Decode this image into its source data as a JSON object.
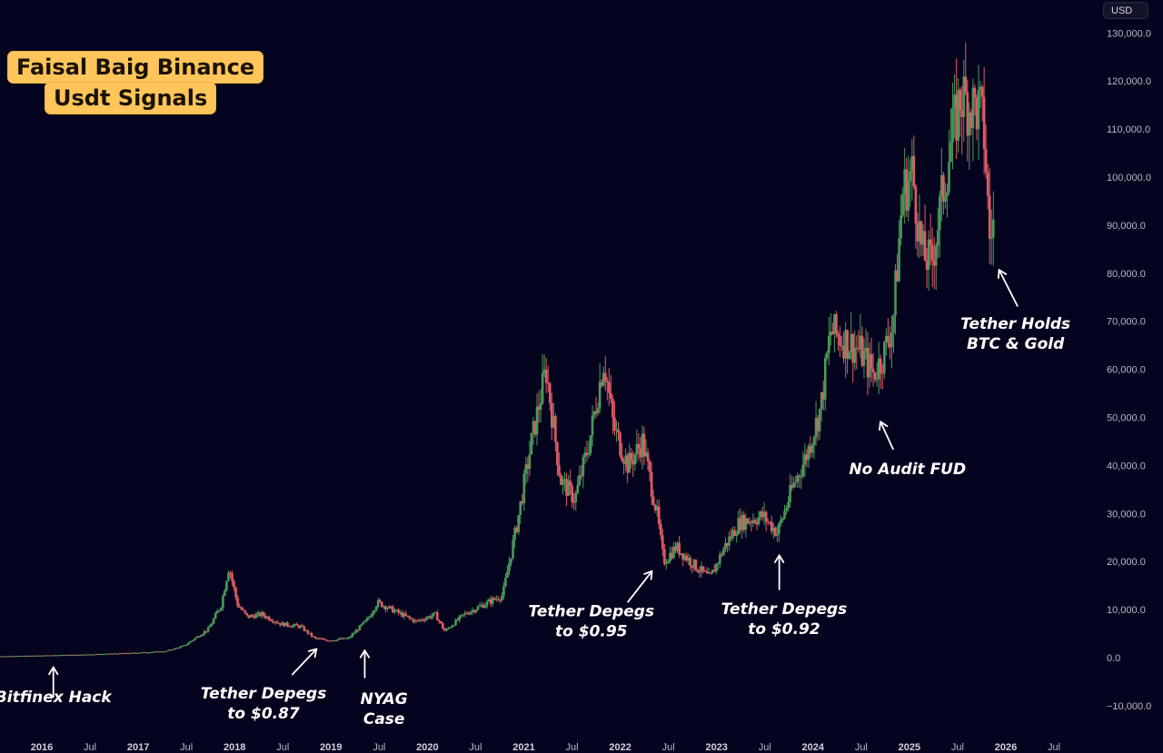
{
  "watermark": {
    "line1": "Faisal Baig Binance",
    "line2": "Usdt Signals"
  },
  "currency": "USD",
  "colors": {
    "background": "#05041f",
    "up": "#4a9a5a",
    "down": "#e05b66",
    "watermark_bg": "#ffc55a",
    "annotation": "#ffffff"
  },
  "chart_data": {
    "type": "candlestick",
    "title": "",
    "xlabel": "",
    "ylabel": "",
    "yaxis": {
      "position": "right",
      "ticks": [
        "130,000.0",
        "120,000.0",
        "110,000.0",
        "100,000.0",
        "90,000.0",
        "80,000.0",
        "70,000.0",
        "60,000.0",
        "50,000.0",
        "40,000.0",
        "30,000.0",
        "20,000.0",
        "10,000.0",
        "0.0",
        "−10,000.0"
      ],
      "range": [
        -10000,
        130000
      ]
    },
    "xaxis": {
      "ticks": [
        {
          "label": "2016",
          "year": 2016.0,
          "bold": true
        },
        {
          "label": "Jul",
          "year": 2016.5,
          "bold": false
        },
        {
          "label": "2017",
          "year": 2017.0,
          "bold": true
        },
        {
          "label": "Jul",
          "year": 2017.5,
          "bold": false
        },
        {
          "label": "2018",
          "year": 2018.0,
          "bold": true
        },
        {
          "label": "Jul",
          "year": 2018.5,
          "bold": false
        },
        {
          "label": "2019",
          "year": 2019.0,
          "bold": true
        },
        {
          "label": "Jul",
          "year": 2019.5,
          "bold": false
        },
        {
          "label": "2020",
          "year": 2020.0,
          "bold": true
        },
        {
          "label": "Jul",
          "year": 2020.5,
          "bold": false
        },
        {
          "label": "2021",
          "year": 2021.0,
          "bold": true
        },
        {
          "label": "Jul",
          "year": 2021.5,
          "bold": false
        },
        {
          "label": "2022",
          "year": 2022.0,
          "bold": true
        },
        {
          "label": "Jul",
          "year": 2022.5,
          "bold": false
        },
        {
          "label": "2023",
          "year": 2023.0,
          "bold": true
        },
        {
          "label": "Jul",
          "year": 2023.5,
          "bold": false
        },
        {
          "label": "2024",
          "year": 2024.0,
          "bold": true
        },
        {
          "label": "Jul",
          "year": 2024.5,
          "bold": false
        },
        {
          "label": "2025",
          "year": 2025.0,
          "bold": true
        },
        {
          "label": "Jul",
          "year": 2025.5,
          "bold": false
        },
        {
          "label": "2026",
          "year": 2026.0,
          "bold": true
        },
        {
          "label": "Jul",
          "year": 2026.5,
          "bold": false
        }
      ]
    },
    "price_path": [
      [
        2015.5,
        250
      ],
      [
        2016.0,
        430
      ],
      [
        2016.5,
        650
      ],
      [
        2017.0,
        1000
      ],
      [
        2017.3,
        1300
      ],
      [
        2017.5,
        2500
      ],
      [
        2017.75,
        6000
      ],
      [
        2017.88,
        11000
      ],
      [
        2017.96,
        19000
      ],
      [
        2018.05,
        11000
      ],
      [
        2018.15,
        8500
      ],
      [
        2018.3,
        9000
      ],
      [
        2018.5,
        7000
      ],
      [
        2018.7,
        6500
      ],
      [
        2018.85,
        4000
      ],
      [
        2019.0,
        3600
      ],
      [
        2019.2,
        4000
      ],
      [
        2019.4,
        8000
      ],
      [
        2019.5,
        11500
      ],
      [
        2019.7,
        9500
      ],
      [
        2019.9,
        7500
      ],
      [
        2020.1,
        9000
      ],
      [
        2020.2,
        5500
      ],
      [
        2020.4,
        9000
      ],
      [
        2020.6,
        11000
      ],
      [
        2020.8,
        13000
      ],
      [
        2020.95,
        28000
      ],
      [
        2021.1,
        45000
      ],
      [
        2021.25,
        60000
      ],
      [
        2021.4,
        37000
      ],
      [
        2021.55,
        33000
      ],
      [
        2021.7,
        45000
      ],
      [
        2021.85,
        62000
      ],
      [
        2021.95,
        48000
      ],
      [
        2022.1,
        40000
      ],
      [
        2022.25,
        45000
      ],
      [
        2022.4,
        30000
      ],
      [
        2022.47,
        20000
      ],
      [
        2022.6,
        23000
      ],
      [
        2022.8,
        19000
      ],
      [
        2022.95,
        16500
      ],
      [
        2023.1,
        23000
      ],
      [
        2023.25,
        28000
      ],
      [
        2023.5,
        29500
      ],
      [
        2023.65,
        26000
      ],
      [
        2023.8,
        35000
      ],
      [
        2023.95,
        42000
      ],
      [
        2024.1,
        52000
      ],
      [
        2024.2,
        68000
      ],
      [
        2024.35,
        66000
      ],
      [
        2024.5,
        64000
      ],
      [
        2024.65,
        59000
      ],
      [
        2024.75,
        63000
      ],
      [
        2024.85,
        70000
      ],
      [
        2024.95,
        97000
      ],
      [
        2025.05,
        101000
      ],
      [
        2025.15,
        84000
      ],
      [
        2025.25,
        82000
      ],
      [
        2025.35,
        95000
      ],
      [
        2025.45,
        107000
      ],
      [
        2025.55,
        117000
      ],
      [
        2025.65,
        115000
      ],
      [
        2025.75,
        114000
      ],
      [
        2025.8,
        108000
      ],
      [
        2025.85,
        87000
      ],
      [
        2025.88,
        90000
      ]
    ],
    "annotations": [
      {
        "text": [
          "Bitfinex Hack"
        ],
        "label_year": 2016.12,
        "label_price": -9300,
        "arrow_from": [
          2016.12,
          -8200
        ],
        "arrow_to": [
          2016.12,
          -2000
        ]
      },
      {
        "text": [
          "Tether Depegs",
          "to $0.87"
        ],
        "label_year": 2018.3,
        "label_price": -8500,
        "arrow_from": [
          2018.6,
          -3500
        ],
        "arrow_to": [
          2018.85,
          1800
        ]
      },
      {
        "text": [
          "NYAG",
          "Case"
        ],
        "label_year": 2019.55,
        "label_price": -9600,
        "arrow_from": [
          2019.35,
          -4100
        ],
        "arrow_to": [
          2019.35,
          1500
        ]
      },
      {
        "text": [
          "Tether Depegs",
          "to $0.95"
        ],
        "label_year": 2021.7,
        "label_price": 8600,
        "arrow_from": [
          2022.08,
          11600
        ],
        "arrow_to": [
          2022.33,
          18000
        ]
      },
      {
        "text": [
          "Tether Depegs",
          "to $0.92"
        ],
        "label_year": 2023.7,
        "label_price": 9100,
        "arrow_from": [
          2023.65,
          14200
        ],
        "arrow_to": [
          2023.65,
          21300
        ]
      },
      {
        "text": [
          "No Audit FUD"
        ],
        "label_year": 2024.98,
        "label_price": 38200,
        "arrow_from": [
          2024.83,
          43400
        ],
        "arrow_to": [
          2024.7,
          49100
        ]
      },
      {
        "text": [
          "Tether Holds",
          "BTC & Gold"
        ],
        "label_year": 2026.1,
        "label_price": 68400,
        "arrow_from": [
          2026.12,
          73200
        ],
        "arrow_to": [
          2025.93,
          80700
        ]
      }
    ]
  }
}
